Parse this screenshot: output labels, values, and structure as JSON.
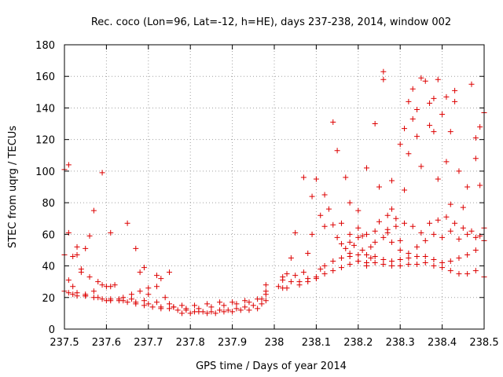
{
  "chart_data": {
    "type": "scatter",
    "title": "Rec. coco (Lon=96, Lat=-12, h=HE), days 237-238, 2014, window 002",
    "xlabel": "GPS time / Days of year 2014",
    "ylabel": "STEC from uqrg / TECUs",
    "xlim": [
      237.5,
      238.5
    ],
    "ylim": [
      0,
      180
    ],
    "xticks": [
      "237.5",
      "237.6",
      "237.7",
      "237.8",
      "237.9",
      "238",
      "238.1",
      "238.2",
      "238.3",
      "238.4",
      "238.5"
    ],
    "yticks": [
      "0",
      "20",
      "40",
      "60",
      "80",
      "100",
      "120",
      "140",
      "160",
      "180"
    ],
    "grid": true,
    "marker": "+",
    "color": "#dd0000",
    "points": [
      [
        237.5,
        47
      ],
      [
        237.5,
        101
      ],
      [
        237.5,
        24
      ],
      [
        237.51,
        104
      ],
      [
        237.51,
        61
      ],
      [
        237.51,
        31
      ],
      [
        237.52,
        27
      ],
      [
        237.52,
        46
      ],
      [
        237.53,
        47
      ],
      [
        237.53,
        52
      ],
      [
        237.53,
        23
      ],
      [
        237.54,
        38
      ],
      [
        237.54,
        36
      ],
      [
        237.55,
        51
      ],
      [
        237.55,
        21
      ],
      [
        237.56,
        59
      ],
      [
        237.56,
        33
      ],
      [
        237.57,
        75
      ],
      [
        237.57,
        24
      ],
      [
        237.58,
        30
      ],
      [
        237.59,
        99
      ],
      [
        237.59,
        28
      ],
      [
        237.6,
        27
      ],
      [
        237.61,
        61
      ],
      [
        237.61,
        27
      ],
      [
        237.62,
        28
      ],
      [
        237.64,
        20
      ],
      [
        237.65,
        67
      ],
      [
        237.66,
        22
      ],
      [
        237.67,
        51
      ],
      [
        237.68,
        24
      ],
      [
        237.68,
        36
      ],
      [
        237.69,
        39
      ],
      [
        237.7,
        26
      ],
      [
        237.7,
        22
      ],
      [
        237.72,
        34
      ],
      [
        237.72,
        27
      ],
      [
        237.73,
        32
      ],
      [
        237.74,
        20
      ],
      [
        237.75,
        36
      ],
      [
        237.76,
        14
      ],
      [
        237.51,
        23
      ],
      [
        237.53,
        21
      ],
      [
        237.55,
        21
      ],
      [
        237.57,
        20
      ],
      [
        237.59,
        19
      ],
      [
        237.61,
        18
      ],
      [
        237.63,
        18
      ],
      [
        237.65,
        17
      ],
      [
        237.67,
        16
      ],
      [
        237.69,
        15
      ],
      [
        237.71,
        14
      ],
      [
        237.73,
        13
      ],
      [
        237.75,
        13
      ],
      [
        237.77,
        12
      ],
      [
        237.79,
        12
      ],
      [
        237.81,
        11
      ],
      [
        237.83,
        11
      ],
      [
        237.85,
        11
      ],
      [
        237.87,
        12
      ],
      [
        237.89,
        12
      ],
      [
        237.91,
        13
      ],
      [
        237.93,
        14
      ],
      [
        237.95,
        15
      ],
      [
        237.97,
        16
      ],
      [
        237.98,
        18
      ],
      [
        237.52,
        22
      ],
      [
        237.55,
        22
      ],
      [
        237.58,
        20
      ],
      [
        237.61,
        19
      ],
      [
        237.64,
        18
      ],
      [
        237.67,
        17
      ],
      [
        237.7,
        16
      ],
      [
        237.73,
        14
      ],
      [
        237.76,
        14
      ],
      [
        237.79,
        13
      ],
      [
        237.82,
        13
      ],
      [
        237.85,
        14
      ],
      [
        237.88,
        15
      ],
      [
        237.91,
        16
      ],
      [
        237.94,
        17
      ],
      [
        237.97,
        19
      ],
      [
        237.6,
        18
      ],
      [
        237.63,
        19
      ],
      [
        237.66,
        19
      ],
      [
        237.69,
        18
      ],
      [
        237.72,
        17
      ],
      [
        237.75,
        16
      ],
      [
        237.78,
        15
      ],
      [
        237.81,
        15
      ],
      [
        237.84,
        16
      ],
      [
        237.87,
        17
      ],
      [
        237.9,
        17
      ],
      [
        237.93,
        18
      ],
      [
        237.96,
        19
      ],
      [
        237.98,
        22
      ],
      [
        237.78,
        10
      ],
      [
        237.8,
        10
      ],
      [
        237.82,
        11
      ],
      [
        237.84,
        10
      ],
      [
        237.86,
        10
      ],
      [
        237.88,
        11
      ],
      [
        237.9,
        11
      ],
      [
        237.92,
        12
      ],
      [
        237.94,
        12
      ],
      [
        237.96,
        13
      ],
      [
        237.98,
        28
      ],
      [
        237.98,
        24
      ],
      [
        238.01,
        27
      ],
      [
        238.02,
        26
      ],
      [
        238.02,
        33
      ],
      [
        238.03,
        35
      ],
      [
        238.03,
        26
      ],
      [
        238.04,
        45
      ],
      [
        238.05,
        34
      ],
      [
        238.05,
        61
      ],
      [
        238.06,
        28
      ],
      [
        238.07,
        96
      ],
      [
        238.07,
        36
      ],
      [
        238.08,
        48
      ],
      [
        238.08,
        30
      ],
      [
        238.09,
        60
      ],
      [
        238.09,
        84
      ],
      [
        238.1,
        95
      ],
      [
        238.1,
        32
      ],
      [
        238.11,
        38
      ],
      [
        238.11,
        72
      ],
      [
        238.12,
        85
      ],
      [
        238.12,
        40
      ],
      [
        238.12,
        65
      ],
      [
        238.13,
        76
      ],
      [
        238.14,
        131
      ],
      [
        238.14,
        66
      ],
      [
        238.15,
        113
      ],
      [
        238.15,
        58
      ],
      [
        238.16,
        67
      ],
      [
        238.17,
        96
      ],
      [
        238.17,
        51
      ],
      [
        238.18,
        80
      ],
      [
        238.18,
        48
      ],
      [
        238.18,
        60
      ],
      [
        238.19,
        53
      ],
      [
        238.2,
        75
      ],
      [
        238.2,
        64
      ],
      [
        238.2,
        43
      ],
      [
        238.21,
        59
      ],
      [
        238.21,
        50
      ],
      [
        238.22,
        102
      ],
      [
        238.22,
        40
      ],
      [
        238.23,
        52
      ],
      [
        238.23,
        45
      ],
      [
        238.24,
        130
      ],
      [
        238.24,
        55
      ],
      [
        238.25,
        90
      ],
      [
        238.25,
        68
      ],
      [
        238.26,
        163
      ],
      [
        238.26,
        158
      ],
      [
        238.27,
        72
      ],
      [
        238.27,
        61
      ],
      [
        238.28,
        94
      ],
      [
        238.28,
        76
      ],
      [
        238.29,
        70
      ],
      [
        238.3,
        117
      ],
      [
        238.3,
        56
      ],
      [
        238.31,
        127
      ],
      [
        238.31,
        88
      ],
      [
        238.32,
        144
      ],
      [
        238.32,
        111
      ],
      [
        238.33,
        152
      ],
      [
        238.33,
        133
      ],
      [
        238.34,
        139
      ],
      [
        238.34,
        122
      ],
      [
        238.35,
        159
      ],
      [
        238.35,
        103
      ],
      [
        238.36,
        157
      ],
      [
        238.37,
        143
      ],
      [
        238.37,
        129
      ],
      [
        238.38,
        146
      ],
      [
        238.38,
        125
      ],
      [
        238.39,
        158
      ],
      [
        238.39,
        95
      ],
      [
        238.4,
        136
      ],
      [
        238.41,
        147
      ],
      [
        238.41,
        106
      ],
      [
        238.42,
        125
      ],
      [
        238.42,
        79
      ],
      [
        238.43,
        151
      ],
      [
        238.43,
        144
      ],
      [
        238.44,
        100
      ],
      [
        238.45,
        77
      ],
      [
        238.46,
        90
      ],
      [
        238.47,
        155
      ],
      [
        238.48,
        108
      ],
      [
        238.48,
        121
      ],
      [
        238.49,
        128
      ],
      [
        238.49,
        91
      ],
      [
        238.5,
        64
      ],
      [
        238.5,
        137
      ],
      [
        238.5,
        56
      ],
      [
        238.02,
        31
      ],
      [
        238.04,
        30
      ],
      [
        238.06,
        30
      ],
      [
        238.08,
        32
      ],
      [
        238.1,
        33
      ],
      [
        238.12,
        35
      ],
      [
        238.14,
        37
      ],
      [
        238.16,
        39
      ],
      [
        238.18,
        41
      ],
      [
        238.2,
        43
      ],
      [
        238.22,
        42
      ],
      [
        238.24,
        42
      ],
      [
        238.26,
        41
      ],
      [
        238.28,
        40
      ],
      [
        238.3,
        40
      ],
      [
        238.32,
        41
      ],
      [
        238.34,
        41
      ],
      [
        238.36,
        42
      ],
      [
        238.38,
        40
      ],
      [
        238.4,
        39
      ],
      [
        238.42,
        37
      ],
      [
        238.44,
        35
      ],
      [
        238.46,
        35
      ],
      [
        238.48,
        37
      ],
      [
        238.5,
        33
      ],
      [
        238.14,
        43
      ],
      [
        238.16,
        45
      ],
      [
        238.18,
        46
      ],
      [
        238.2,
        47
      ],
      [
        238.22,
        47
      ],
      [
        238.24,
        46
      ],
      [
        238.26,
        44
      ],
      [
        238.28,
        43
      ],
      [
        238.3,
        44
      ],
      [
        238.32,
        45
      ],
      [
        238.34,
        46
      ],
      [
        238.36,
        46
      ],
      [
        238.38,
        44
      ],
      [
        238.4,
        42
      ],
      [
        238.42,
        43
      ],
      [
        238.44,
        45
      ],
      [
        238.46,
        47
      ],
      [
        238.48,
        50
      ],
      [
        238.16,
        54
      ],
      [
        238.18,
        55
      ],
      [
        238.2,
        58
      ],
      [
        238.22,
        60
      ],
      [
        238.24,
        62
      ],
      [
        238.26,
        58
      ],
      [
        238.28,
        55
      ],
      [
        238.3,
        50
      ],
      [
        238.32,
        48
      ],
      [
        238.34,
        52
      ],
      [
        238.36,
        56
      ],
      [
        238.38,
        60
      ],
      [
        238.4,
        58
      ],
      [
        238.42,
        62
      ],
      [
        238.44,
        57
      ],
      [
        238.46,
        60
      ],
      [
        238.48,
        58
      ],
      [
        238.27,
        63
      ],
      [
        238.29,
        65
      ],
      [
        238.31,
        67
      ],
      [
        238.33,
        65
      ],
      [
        238.35,
        61
      ],
      [
        238.37,
        67
      ],
      [
        238.39,
        69
      ],
      [
        238.41,
        71
      ],
      [
        238.43,
        67
      ],
      [
        238.45,
        64
      ],
      [
        238.47,
        62
      ],
      [
        238.49,
        59
      ]
    ]
  }
}
